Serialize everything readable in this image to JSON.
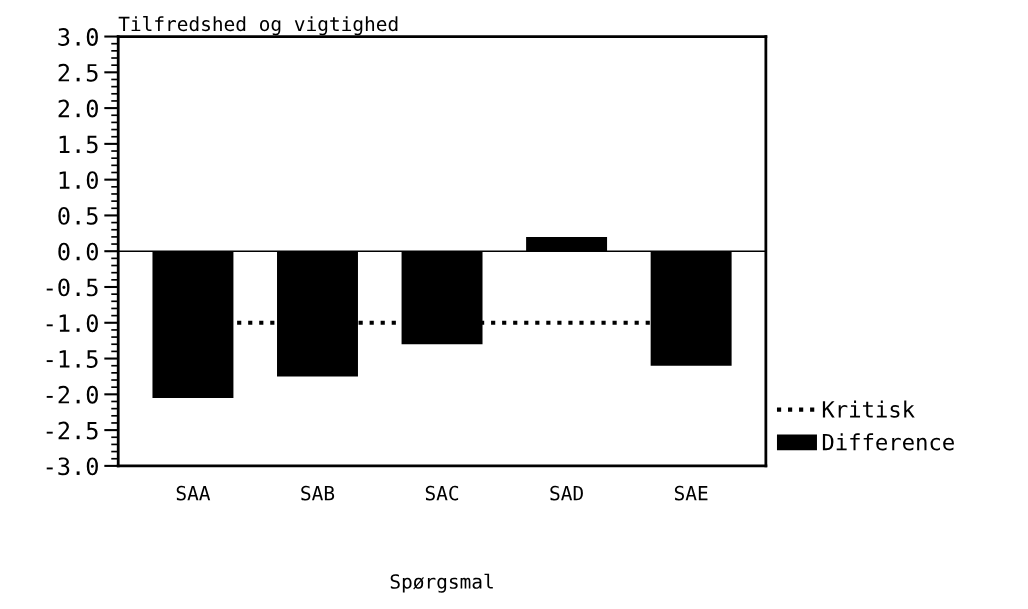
{
  "chart_data": {
    "type": "bar",
    "title": "Tilfredshed og vigtighed",
    "xlabel": "Spørgsmal",
    "categories": [
      "SAA",
      "SAB",
      "SAC",
      "SAD",
      "SAE"
    ],
    "series": [
      {
        "name": "Difference",
        "color": "#000000",
        "values": [
          -2.05,
          -1.75,
          -1.3,
          0.2,
          -1.6
        ]
      }
    ],
    "ylim": [
      -3.0,
      3.0
    ],
    "yticks": [
      {
        "value": -3.0,
        "label": "-3.0"
      },
      {
        "value": -2.5,
        "label": "-2.5"
      },
      {
        "value": -2.0,
        "label": "-2.0"
      },
      {
        "value": -1.5,
        "label": "-1.5"
      },
      {
        "value": -1.0,
        "label": "-1.0"
      },
      {
        "value": -0.5,
        "label": "-0.5"
      },
      {
        "value": 0.0,
        "label": "0.0"
      },
      {
        "value": 0.5,
        "label": "0.5"
      },
      {
        "value": 1.0,
        "label": "1.0"
      },
      {
        "value": 1.5,
        "label": "1.5"
      },
      {
        "value": 2.0,
        "label": "2.0"
      },
      {
        "value": 2.5,
        "label": "2.5"
      },
      {
        "value": 3.0,
        "label": "3.0"
      }
    ],
    "ref_lines": [
      {
        "axis": "y",
        "value": -1.0,
        "label": "Kritisk",
        "color": "#000000",
        "line_style": "dotted"
      }
    ],
    "grid": false,
    "legend": "bottom right"
  }
}
